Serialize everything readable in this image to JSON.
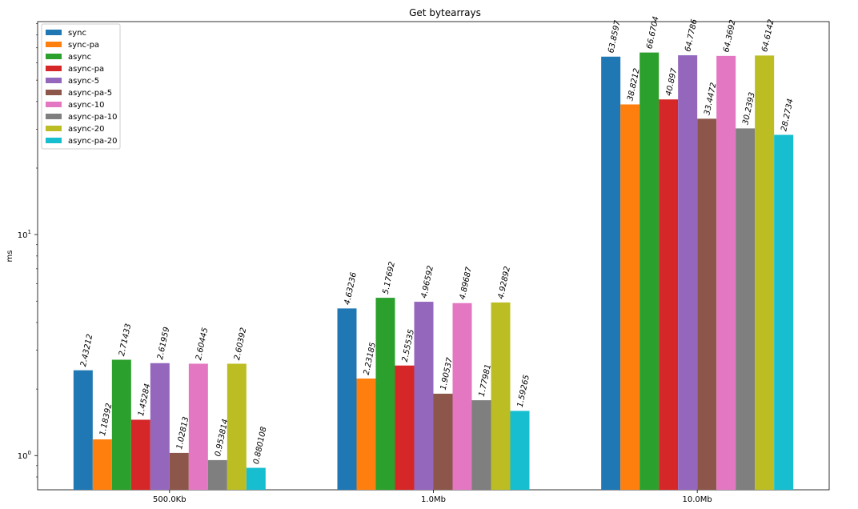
{
  "chart_data": {
    "type": "bar",
    "title": "Get bytearrays",
    "xlabel": "",
    "ylabel": "ms",
    "yscale": "log",
    "ylim": [
      0.7,
      92
    ],
    "y_ticks": [
      {
        "value": 1,
        "base": "10",
        "exp": "0"
      },
      {
        "value": 10,
        "base": "10",
        "exp": "1"
      }
    ],
    "categories": [
      "500.0Kb",
      "1.0Mb",
      "10.0Mb"
    ],
    "grid": false,
    "legend_position": "top-left",
    "series": [
      {
        "name": "sync",
        "color": "#1f77b4",
        "values": [
          2.43212,
          4.63236,
          63.8597
        ],
        "labels": [
          "2.43212",
          "4.63236",
          "63.8597"
        ]
      },
      {
        "name": "sync-pa",
        "color": "#ff7f0e",
        "values": [
          1.18392,
          2.23185,
          38.8212
        ],
        "labels": [
          "1.18392",
          "2.23185",
          "38.8212"
        ]
      },
      {
        "name": "async",
        "color": "#2ca02c",
        "values": [
          2.71433,
          5.17692,
          66.6704
        ],
        "labels": [
          "2.71433",
          "5.17692",
          "66.6704"
        ]
      },
      {
        "name": "async-pa",
        "color": "#d62728",
        "values": [
          1.45284,
          2.55535,
          40.897
        ],
        "labels": [
          "1.45284",
          "2.55535",
          "40.897"
        ]
      },
      {
        "name": "async-5",
        "color": "#9467bd",
        "values": [
          2.61959,
          4.96592,
          64.7786
        ],
        "labels": [
          "2.61959",
          "4.96592",
          "64.7786"
        ]
      },
      {
        "name": "async-pa-5",
        "color": "#8c564b",
        "values": [
          1.02813,
          1.90537,
          33.4472
        ],
        "labels": [
          "1.02813",
          "1.90537",
          "33.4472"
        ]
      },
      {
        "name": "async-10",
        "color": "#e377c2",
        "values": [
          2.60445,
          4.89687,
          64.3692
        ],
        "labels": [
          "2.60445",
          "4.89687",
          "64.3692"
        ]
      },
      {
        "name": "async-pa-10",
        "color": "#7f7f7f",
        "values": [
          0.953814,
          1.77981,
          30.2393
        ],
        "labels": [
          "0.953814",
          "1.77981",
          "30.2393"
        ]
      },
      {
        "name": "async-20",
        "color": "#bcbd22",
        "values": [
          2.60392,
          4.92892,
          64.6142
        ],
        "labels": [
          "2.60392",
          "4.92892",
          "64.6142"
        ]
      },
      {
        "name": "async-pa-20",
        "color": "#17becf",
        "values": [
          0.880108,
          1.59265,
          28.2734
        ],
        "labels": [
          "0.880108",
          "1.59265",
          "28.2734"
        ]
      }
    ]
  }
}
